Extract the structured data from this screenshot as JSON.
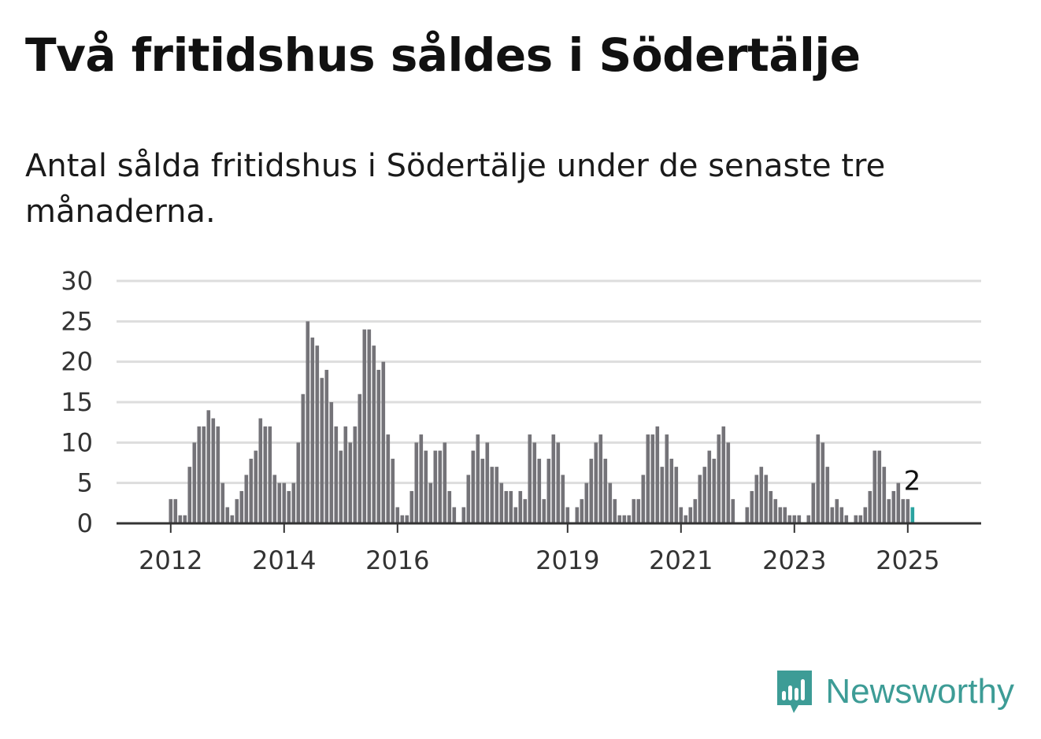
{
  "title": "Två fritidshus såldes i Södertälje",
  "subtitle": "Antal sålda fritidshus i Södertälje under de senaste tre månaderna.",
  "brand": {
    "name": "Newsworthy",
    "icon": "newsworthy-logo-icon",
    "color": "#3d9c96"
  },
  "colors": {
    "bar": "#747378",
    "highlight": "#2aa3a0",
    "grid": "#dddddd"
  },
  "chart_data": {
    "type": "bar",
    "title": "Två fritidshus såldes i Södertälje",
    "xlabel": "",
    "ylabel": "",
    "ylim": [
      0,
      30
    ],
    "yticks": [
      0,
      5,
      10,
      15,
      20,
      25,
      30
    ],
    "grid": true,
    "x_start": "2011-06",
    "x_ticks": [
      {
        "label": "2012",
        "x": "2012-01"
      },
      {
        "label": "2014",
        "x": "2014-01"
      },
      {
        "label": "2016",
        "x": "2016-01"
      },
      {
        "label": "2019",
        "x": "2019-01"
      },
      {
        "label": "2021",
        "x": "2021-01"
      },
      {
        "label": "2023",
        "x": "2023-01"
      },
      {
        "label": "2025",
        "x": "2025-01"
      }
    ],
    "values": [
      0,
      0,
      0,
      0,
      0,
      0,
      0,
      3,
      3,
      1,
      1,
      7,
      10,
      12,
      12,
      14,
      13,
      12,
      5,
      2,
      1,
      3,
      4,
      6,
      8,
      9,
      13,
      12,
      12,
      6,
      5,
      5,
      4,
      5,
      10,
      16,
      25,
      23,
      22,
      18,
      19,
      15,
      12,
      9,
      12,
      10,
      12,
      16,
      24,
      24,
      22,
      19,
      20,
      11,
      8,
      2,
      1,
      1,
      4,
      10,
      11,
      9,
      5,
      9,
      9,
      10,
      4,
      2,
      0,
      2,
      6,
      9,
      11,
      8,
      10,
      7,
      7,
      5,
      4,
      4,
      2,
      4,
      3,
      11,
      10,
      8,
      3,
      8,
      11,
      10,
      6,
      2,
      0,
      2,
      3,
      5,
      8,
      10,
      11,
      8,
      5,
      3,
      1,
      1,
      1,
      3,
      3,
      6,
      11,
      11,
      12,
      7,
      11,
      8,
      7,
      2,
      1,
      2,
      3,
      6,
      7,
      9,
      8,
      11,
      12,
      10,
      3,
      0,
      0,
      2,
      4,
      6,
      7,
      6,
      4,
      3,
      2,
      2,
      1,
      1,
      1,
      0,
      1,
      5,
      11,
      10,
      7,
      2,
      3,
      2,
      1,
      0,
      1,
      1,
      2,
      4,
      9,
      9,
      7,
      3,
      4,
      5,
      3,
      3,
      2
    ],
    "annotation": {
      "label": "2",
      "value": 2
    }
  }
}
